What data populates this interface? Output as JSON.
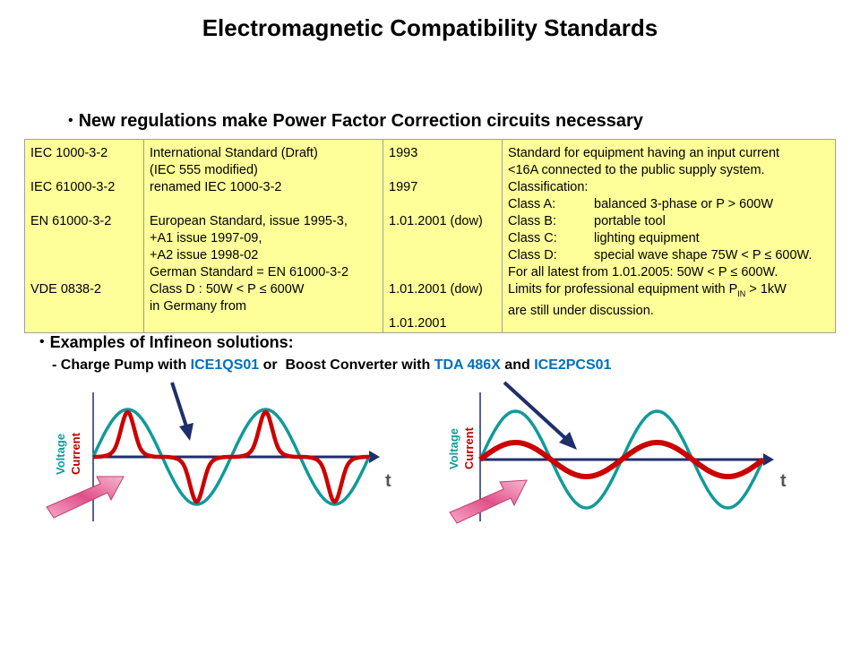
{
  "title": "Electromagnetic Compatibility Standards",
  "bullet1": "New regulations make Power Factor Correction circuits necessary",
  "table": {
    "col1": [
      "IEC 1000-3-2",
      "IEC 61000-3-2",
      "EN 61000-3-2",
      "VDE 0838-2"
    ],
    "col2": {
      "l1": "International Standard (Draft)",
      "l2": "(IEC 555 modified)",
      "l3": "renamed IEC 1000-3-2",
      "l4": "European Standard, issue 1995-3,",
      "l5": "+A1 issue 1997-09,",
      "l6": "+A2 issue 1998-02",
      "l7": "German Standard = EN 61000-3-2",
      "l8": "Class D : 50W < P ≤ 600W",
      "l9": "in Germany from"
    },
    "col3": [
      "1993",
      "1997",
      "1.01.2001 (dow)",
      "1.01.2001 (dow)",
      "1.01.2001"
    ],
    "col4": {
      "l1": "Standard for equipment having an input current",
      "l2": "<16A connected to the public supply system.",
      "l3": "Classification:",
      "classes": [
        {
          "k": "Class A:",
          "v": "balanced 3-phase or P > 600W"
        },
        {
          "k": "Class B:",
          "v": "portable tool"
        },
        {
          "k": "Class C:",
          "v": "lighting equipment"
        },
        {
          "k": "Class D:",
          "v": "special wave shape 75W < P ≤ 600W."
        }
      ],
      "l8": "For all latest from 1.01.2005: 50W < P ≤ 600W.",
      "l9a": "Limits for professional equipment with P",
      "l9sub": "IN",
      "l9b": " > 1kW",
      "l10": "are still under discussion."
    }
  },
  "bullet2": "Examples of Infineon solutions:",
  "sub": {
    "a": "- Charge Pump with ",
    "b": "ICE1QS01",
    "c": " or  Boost Converter with ",
    "d": "TDA 486X",
    "e": " and ",
    "f": "ICE2PCS01"
  },
  "graphs": {
    "voltage_label": "Voltage",
    "current_label": "Current",
    "t_label": "t"
  },
  "colors": {
    "voltage": "#109a9a",
    "current": "#cc0000",
    "axis": "#1f2f6b",
    "highlight": "#0070c0",
    "table_bg": "#ffff99"
  }
}
